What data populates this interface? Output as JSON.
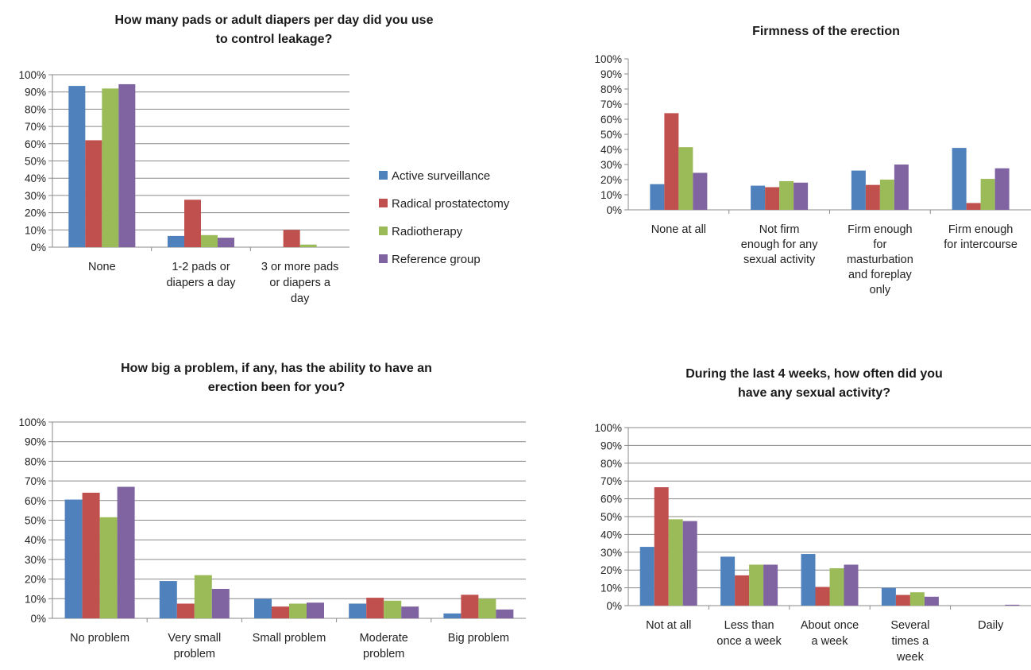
{
  "colors": {
    "Active surveillance": "#4f81bd",
    "Radical prostatectomy": "#c0504d",
    "Radiotherapy": "#9bbb59",
    "Reference group": "#8064a2"
  },
  "legend": {
    "placement": "between-top-charts",
    "items": [
      "Active surveillance",
      "Radical prostatectomy",
      "Radiotherapy",
      "Reference group"
    ]
  },
  "chart_data": [
    {
      "type": "bar",
      "title": [
        "How many pads or adult diapers per day did you use",
        "to control leakage?"
      ],
      "ylim": [
        0,
        100
      ],
      "yticks": [
        "0%",
        "10%",
        "20%",
        "30%",
        "40%",
        "50%",
        "60%",
        "70%",
        "80%",
        "90%",
        "100%"
      ],
      "grid": true,
      "categories": [
        [
          "None"
        ],
        [
          "1-2 pads or",
          "diapers a day"
        ],
        [
          "3 or more pads",
          "or diapers a",
          "day"
        ]
      ],
      "series": [
        {
          "name": "Active surveillance",
          "values": [
            93.5,
            6.5,
            0
          ]
        },
        {
          "name": "Radical prostatectomy",
          "values": [
            62,
            27.5,
            10
          ]
        },
        {
          "name": "Radiotherapy",
          "values": [
            92,
            7,
            1.5
          ]
        },
        {
          "name": "Reference group",
          "values": [
            94.5,
            5.5,
            0
          ]
        }
      ]
    },
    {
      "type": "bar",
      "title": [
        "Firmness of the erection"
      ],
      "ylim": [
        0,
        100
      ],
      "yticks": [
        "0%",
        "10%",
        "20%",
        "30%",
        "40%",
        "50%",
        "60%",
        "70%",
        "80%",
        "90%",
        "100%"
      ],
      "grid": false,
      "categories": [
        [
          "None at all"
        ],
        [
          "Not firm",
          "enough for any",
          "sexual activity"
        ],
        [
          "Firm enough",
          "for",
          "masturbation",
          "and foreplay",
          "only"
        ],
        [
          "Firm enough",
          "for intercourse"
        ]
      ],
      "series": [
        {
          "name": "Active surveillance",
          "values": [
            17,
            16,
            26,
            41
          ]
        },
        {
          "name": "Radical prostatectomy",
          "values": [
            64,
            15,
            16.5,
            4.5
          ]
        },
        {
          "name": "Radiotherapy",
          "values": [
            41.5,
            19,
            20,
            20.5
          ]
        },
        {
          "name": "Reference group",
          "values": [
            24.5,
            18,
            30,
            27.5
          ]
        }
      ]
    },
    {
      "type": "bar",
      "title": [
        "How big a problem, if any, has the ability to have an",
        "erection been for you?"
      ],
      "ylim": [
        0,
        100
      ],
      "yticks": [
        "0%",
        "10%",
        "20%",
        "30%",
        "40%",
        "50%",
        "60%",
        "70%",
        "80%",
        "90%",
        "100%"
      ],
      "grid": true,
      "categories": [
        [
          "No problem"
        ],
        [
          "Very small",
          "problem"
        ],
        [
          "Small problem"
        ],
        [
          "Moderate",
          "problem"
        ],
        [
          "Big problem"
        ]
      ],
      "series": [
        {
          "name": "Active surveillance",
          "values": [
            60.5,
            19,
            10,
            7.5,
            2.5
          ]
        },
        {
          "name": "Radical prostatectomy",
          "values": [
            64,
            7.5,
            6,
            10.5,
            12
          ]
        },
        {
          "name": "Radiotherapy",
          "values": [
            51.5,
            22,
            7.5,
            9,
            10
          ]
        },
        {
          "name": "Reference group",
          "values": [
            67,
            15,
            8,
            6,
            4.5
          ]
        }
      ]
    },
    {
      "type": "bar",
      "title": [
        "During the last 4 weeks, how often did you",
        "have any sexual activity?"
      ],
      "ylim": [
        0,
        100
      ],
      "yticks": [
        "0%",
        "10%",
        "20%",
        "30%",
        "40%",
        "50%",
        "60%",
        "70%",
        "80%",
        "90%",
        "100%"
      ],
      "grid": true,
      "categories": [
        [
          "Not at all"
        ],
        [
          "Less than",
          "once a week"
        ],
        [
          "About once",
          "a week"
        ],
        [
          "Several",
          "times a",
          "week"
        ],
        [
          "Daily"
        ]
      ],
      "series": [
        {
          "name": "Active surveillance",
          "values": [
            33,
            27.5,
            29,
            10,
            0
          ]
        },
        {
          "name": "Radical prostatectomy",
          "values": [
            66.5,
            17,
            10.5,
            6,
            0
          ]
        },
        {
          "name": "Radiotherapy",
          "values": [
            48.5,
            23,
            21,
            7.5,
            0
          ]
        },
        {
          "name": "Reference group",
          "values": [
            47.5,
            23,
            23,
            5,
            0.5
          ]
        }
      ]
    }
  ]
}
